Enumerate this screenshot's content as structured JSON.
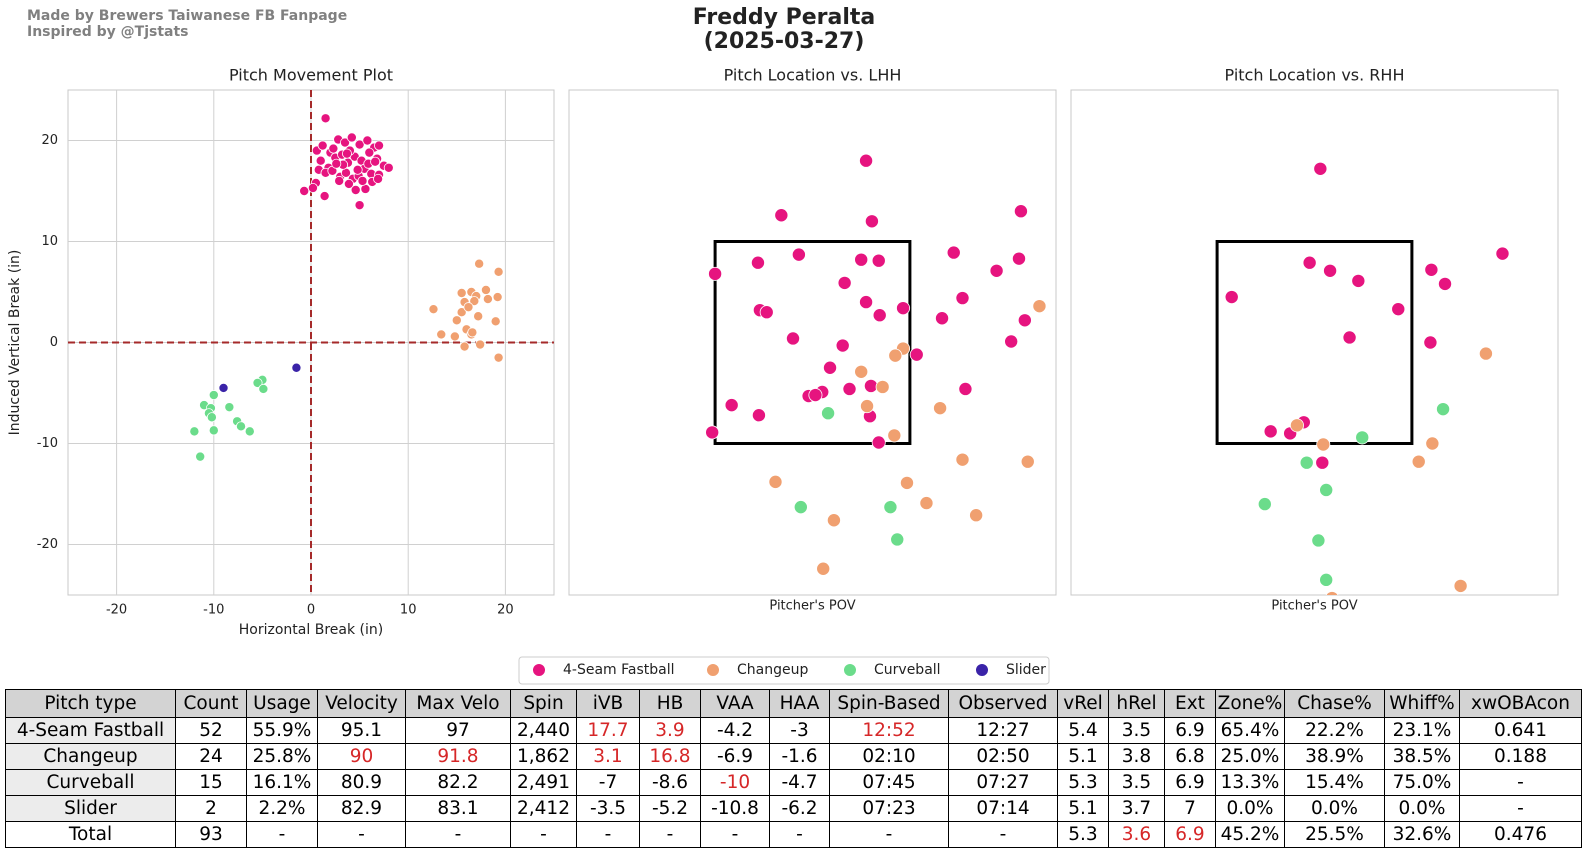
{
  "header": {
    "credits": [
      "Made by Brewers Taiwanese FB Fanpage",
      "Inspired by @Tjstats"
    ],
    "title": "Freddy Peralta",
    "subtitle": "(2025-03-27)"
  },
  "chart_data": [
    {
      "type": "scatter",
      "title": "Pitch Movement Plot",
      "xlabel": "Horizontal Break (in)",
      "ylabel": "Induced Vertical Break (in)",
      "xlim": [
        -25,
        25
      ],
      "ylim": [
        -25,
        25
      ],
      "xticks": [
        -20,
        -10,
        0,
        10,
        20
      ],
      "yticks": [
        -20,
        -10,
        0,
        10,
        20
      ],
      "grid": true,
      "hline": 0,
      "vline": 0,
      "line_color": "#a52a2a",
      "series": [
        {
          "name": "4-Seam Fastball",
          "color": "#e6147f",
          "x": [
            1.5,
            0.6,
            1.2,
            2.0,
            2.8,
            3.5,
            4.2,
            5.0,
            5.8,
            6.5,
            7.0,
            1.0,
            1.8,
            2.5,
            3.2,
            3.8,
            4.5,
            5.2,
            6.0,
            6.8,
            7.5,
            8.0,
            0.8,
            1.5,
            2.2,
            3.0,
            3.6,
            4.3,
            4.9,
            5.5,
            6.2,
            7.0,
            0.5,
            -0.7,
            0.2,
            2.9,
            3.9,
            4.6,
            5.6,
            6.3,
            1.4,
            5.0,
            2.3,
            3.3,
            4.0,
            4.8,
            5.9,
            6.6,
            2.6,
            3.7,
            5.3,
            6.9
          ],
          "values": [
            22.2,
            19.0,
            19.5,
            18.8,
            20.1,
            19.8,
            20.3,
            19.6,
            20.0,
            19.3,
            19.5,
            18.0,
            17.3,
            18.3,
            18.6,
            17.8,
            18.4,
            18.0,
            18.8,
            18.2,
            17.5,
            17.3,
            17.1,
            16.8,
            17.0,
            16.4,
            16.8,
            16.2,
            16.5,
            17.2,
            16.7,
            16.6,
            15.8,
            15.0,
            15.3,
            16.0,
            15.7,
            15.1,
            15.2,
            15.9,
            14.5,
            13.6,
            19.2,
            17.6,
            19.0,
            17.1,
            17.7,
            17.9,
            17.7,
            18.7,
            16.0,
            16.2
          ]
        },
        {
          "name": "Changeup",
          "color": "#f0a070",
          "x": [
            17.3,
            19.3,
            18.0,
            16.5,
            15.5,
            17.0,
            18.2,
            19.2,
            15.8,
            16.8,
            12.6,
            15.5,
            16.2,
            15.0,
            17.2,
            19.0,
            16.0,
            16.5,
            14.8,
            13.4,
            17.4,
            15.8,
            19.3,
            16.6
          ],
          "values": [
            7.8,
            7.0,
            5.2,
            5.0,
            4.9,
            4.6,
            4.3,
            4.5,
            4.0,
            4.1,
            3.3,
            3.0,
            3.5,
            2.2,
            2.6,
            2.1,
            1.3,
            0.8,
            0.6,
            0.8,
            -0.2,
            -0.4,
            -1.5,
            1.0
          ]
        },
        {
          "name": "Curveball",
          "color": "#6bdc8b",
          "x": [
            -5.0,
            -5.5,
            -4.9,
            -10.0,
            -11.0,
            -10.3,
            -8.4,
            -10.5,
            -10.2,
            -7.6,
            -7.2,
            -12.0,
            -10.0,
            -6.3,
            -11.4
          ],
          "values": [
            -3.7,
            -4.0,
            -4.6,
            -5.2,
            -6.2,
            -6.5,
            -6.4,
            -7.0,
            -7.4,
            -7.8,
            -8.3,
            -8.8,
            -8.7,
            -8.8,
            -11.3
          ]
        },
        {
          "name": "Slider",
          "color": "#3a23a8",
          "x": [
            -9.0,
            -1.5
          ],
          "values": [
            -4.5,
            -2.5
          ]
        }
      ]
    },
    {
      "type": "scatter",
      "title": "Pitch Location vs. LHH",
      "xlabel": "Pitcher's POV",
      "xlim": [
        -25,
        25
      ],
      "ylim": [
        -25,
        25
      ],
      "strike_zone": {
        "x": [
          -10,
          10
        ],
        "y": [
          -10,
          10
        ]
      },
      "series": [
        {
          "color": "#e6147f",
          "x": [
            5.5,
            -3.2,
            6.1,
            21.4,
            -10.0,
            -5.6,
            -1.4,
            5.0,
            6.8,
            14.5,
            21.2,
            18.9,
            3.3,
            -5.4,
            -4.7,
            5.5,
            6.9,
            9.3,
            15.4,
            13.3,
            21.8,
            20.4,
            -2.0,
            3.1,
            10.7,
            1.8,
            3.8,
            6.0,
            -0.4,
            1.0,
            0.3,
            15.7,
            -8.3,
            -5.5,
            5.9,
            -10.3,
            6.8
          ],
          "values": [
            18.0,
            12.6,
            12.0,
            13.0,
            6.8,
            7.9,
            8.7,
            8.2,
            8.1,
            8.9,
            8.3,
            7.1,
            5.9,
            3.2,
            3.0,
            4.0,
            2.7,
            3.4,
            4.4,
            2.4,
            2.2,
            0.1,
            0.4,
            -0.3,
            -1.2,
            -2.5,
            -4.6,
            -4.3,
            -5.3,
            -4.9,
            -5.2,
            -4.6,
            -6.2,
            -7.2,
            -7.3,
            -8.9,
            -9.9
          ]
        },
        {
          "color": "#f0a070",
          "x": [
            23.3,
            9.3,
            8.5,
            5.0,
            7.2,
            5.6,
            13.1,
            8.4,
            15.4,
            22.1,
            -3.8,
            9.7,
            11.7,
            16.8,
            2.2,
            1.1
          ],
          "values": [
            3.6,
            -0.6,
            -1.3,
            -2.9,
            -4.4,
            -6.3,
            -6.5,
            -9.2,
            -11.6,
            -11.8,
            -13.8,
            -13.9,
            -15.9,
            -17.1,
            -17.6,
            -22.4
          ]
        },
        {
          "color": "#6bdc8b",
          "x": [
            1.6,
            -1.2,
            8.0,
            8.7
          ],
          "values": [
            -7.0,
            -16.3,
            -16.3,
            -19.5
          ]
        }
      ]
    },
    {
      "type": "scatter",
      "title": "Pitch Location vs. RHH",
      "xlabel": "Pitcher's POV",
      "xlim": [
        -25,
        25
      ],
      "ylim": [
        -25,
        25
      ],
      "strike_zone": {
        "x": [
          -10,
          10
        ],
        "y": [
          -10,
          10
        ]
      },
      "series": [
        {
          "color": "#e6147f",
          "x": [
            0.6,
            19.3,
            -0.5,
            1.6,
            12.0,
            13.4,
            4.5,
            -8.5,
            8.6,
            3.6,
            11.9,
            -1.1,
            -4.5,
            -2.5,
            0.8
          ],
          "values": [
            17.2,
            8.8,
            7.9,
            7.1,
            7.2,
            5.8,
            6.1,
            4.5,
            3.3,
            0.5,
            0.0,
            -7.9,
            -8.8,
            -9.0,
            -11.9
          ]
        },
        {
          "color": "#f0a070",
          "x": [
            17.6,
            -1.8,
            0.9,
            12.1,
            10.7,
            15.0,
            1.8
          ],
          "values": [
            -1.1,
            -8.2,
            -10.1,
            -10.0,
            -11.8,
            -24.1,
            -25.3
          ]
        },
        {
          "color": "#6bdc8b",
          "x": [
            13.2,
            4.9,
            -0.8,
            1.2,
            -5.1,
            0.4,
            1.2
          ],
          "values": [
            -6.6,
            -9.4,
            -11.9,
            -14.6,
            -16.0,
            -19.6,
            -23.5
          ]
        }
      ]
    }
  ],
  "table": {
    "columns": [
      "Pitch type",
      "Count",
      "Usage",
      "Velocity",
      "Max Velo",
      "Spin",
      "iVB",
      "HB",
      "VAA",
      "HAA",
      "Spin-Based",
      "Observed",
      "vRel",
      "hRel",
      "Ext",
      "Zone%",
      "Chase%",
      "Whiff%",
      "xwOBAcon"
    ],
    "rows": [
      [
        "4-Seam Fastball",
        "52",
        "55.9%",
        "95.1",
        "97",
        "2,440",
        "17.7",
        "3.9",
        "-4.2",
        "-3",
        "12:52",
        "12:27",
        "5.4",
        "3.5",
        "6.9",
        "65.4%",
        "22.2%",
        "23.1%",
        "0.641"
      ],
      [
        "Changeup",
        "24",
        "25.8%",
        "90",
        "91.8",
        "1,862",
        "3.1",
        "16.8",
        "-6.9",
        "-1.6",
        "02:10",
        "02:50",
        "5.1",
        "3.8",
        "6.8",
        "25.0%",
        "38.9%",
        "38.5%",
        "0.188"
      ],
      [
        "Curveball",
        "15",
        "16.1%",
        "80.9",
        "82.2",
        "2,491",
        "-7",
        "-8.6",
        "-10",
        "-4.7",
        "07:45",
        "07:27",
        "5.3",
        "3.5",
        "6.9",
        "13.3%",
        "15.4%",
        "75.0%",
        "-"
      ],
      [
        "Slider",
        "2",
        "2.2%",
        "82.9",
        "83.1",
        "2,412",
        "-3.5",
        "-5.2",
        "-10.8",
        "-6.2",
        "07:23",
        "07:14",
        "5.1",
        "3.7",
        "7",
        "0.0%",
        "0.0%",
        "0.0%",
        "-"
      ],
      [
        "Total",
        "93",
        "-",
        "-",
        "-",
        "-",
        "-",
        "-",
        "-",
        "-",
        "-",
        "-",
        "5.3",
        "3.6",
        "6.9",
        "45.2%",
        "25.5%",
        "32.6%",
        "0.476"
      ]
    ],
    "highlight_color": "#d62728",
    "highlight_cells": [
      [
        0,
        6
      ],
      [
        0,
        7
      ],
      [
        0,
        10
      ],
      [
        1,
        3
      ],
      [
        1,
        4
      ],
      [
        1,
        6
      ],
      [
        1,
        7
      ],
      [
        2,
        8
      ],
      [
        4,
        13
      ],
      [
        4,
        14
      ]
    ]
  }
}
